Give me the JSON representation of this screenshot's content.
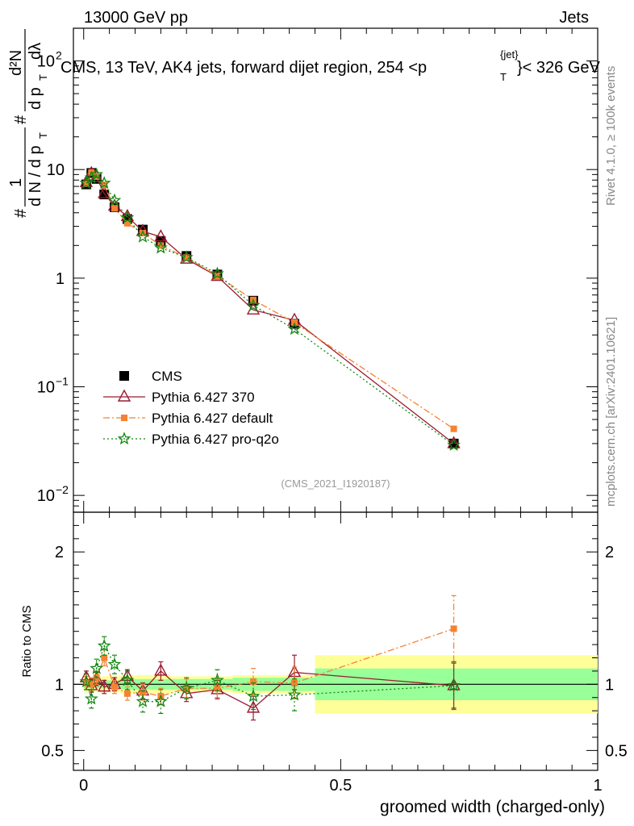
{
  "header": {
    "left": "13000 GeV pp",
    "right": "Jets",
    "title_part1": "CMS, 13 TeV, AK4 jets, forward dijet region, 254 <p",
    "title_sup": "{jet}",
    "title_sub": "T",
    "title_part2": "}< 326 GeV",
    "analysis_id": "(CMS_2021_I1920187)"
  },
  "side_labels": {
    "rivet": "Rivet 4.1.0, ≥ 100k events",
    "mcplots": "mcplots.cern.ch [arXiv:2401.10621]"
  },
  "ylabel_top": {
    "hash": "#",
    "one": "1",
    "dN": "d N / d p",
    "T": "T",
    "hash2": "#",
    "d2N": "d²N",
    "dpT": "d p",
    "dlambda": "dλ"
  },
  "chart_data": [
    {
      "type": "line",
      "panel": "main",
      "yscale": "log",
      "xlim": [
        -0.02,
        1.0
      ],
      "ylim": [
        0.007,
        200
      ],
      "x_ticks": [
        0,
        0.5,
        1
      ],
      "y_tick_labels": [
        {
          "v": 100,
          "base": "10",
          "exp": "2"
        },
        {
          "v": 10,
          "base": "10",
          "exp": ""
        },
        {
          "v": 1,
          "base": "1",
          "exp": ""
        },
        {
          "v": 0.1,
          "base": "10",
          "exp": "−1"
        },
        {
          "v": 0.01,
          "base": "10",
          "exp": "−2"
        }
      ],
      "x": [
        0.005,
        0.015,
        0.025,
        0.04,
        0.06,
        0.085,
        0.115,
        0.15,
        0.2,
        0.26,
        0.33,
        0.41,
        0.72
      ],
      "series": [
        {
          "name": "CMS",
          "color": "#000000",
          "marker": "square",
          "values": [
            7.3,
            9.3,
            8.2,
            5.9,
            4.5,
            3.5,
            2.8,
            2.2,
            1.6,
            1.08,
            0.62,
            0.38,
            0.03
          ]
        },
        {
          "name": "Pythia 6.427 370",
          "color": "#9b1b30",
          "marker": "triangle",
          "dash": "",
          "values": [
            7.6,
            9.2,
            8.5,
            6.0,
            4.6,
            3.7,
            2.7,
            2.4,
            1.5,
            1.04,
            0.51,
            0.41,
            0.03
          ]
        },
        {
          "name": "Pythia 6.427 default",
          "color": "#f58231",
          "marker": "filled-square",
          "dash": "8,3,2,3",
          "values": [
            7.4,
            9.4,
            8.6,
            7.2,
            4.4,
            3.2,
            2.6,
            2.0,
            1.55,
            1.05,
            0.63,
            0.39,
            0.041
          ]
        },
        {
          "name": "Pythia 6.427 pro-q2o",
          "color": "#118811",
          "marker": "star",
          "dash": "2,3",
          "values": [
            7.5,
            8.4,
            9.0,
            7.5,
            5.2,
            3.6,
            2.4,
            1.9,
            1.55,
            1.1,
            0.56,
            0.34,
            0.029
          ]
        }
      ]
    },
    {
      "type": "line",
      "panel": "ratio",
      "ylabel": "Ratio to CMS",
      "xlabel": "groomed width (charged-only)",
      "xlim": [
        -0.02,
        1.0
      ],
      "ylim": [
        0.35,
        2.3
      ],
      "y_ticks": [
        0.5,
        1,
        2
      ],
      "x_tick_labels": [
        "0",
        "0.5",
        "1"
      ],
      "x_bins": [
        [
          0.0,
          0.01
        ],
        [
          0.01,
          0.02
        ],
        [
          0.02,
          0.03
        ],
        [
          0.03,
          0.05
        ],
        [
          0.05,
          0.07
        ],
        [
          0.07,
          0.1
        ],
        [
          0.1,
          0.13
        ],
        [
          0.13,
          0.17
        ],
        [
          0.17,
          0.23
        ],
        [
          0.23,
          0.29
        ],
        [
          0.29,
          0.37
        ],
        [
          0.37,
          0.45
        ],
        [
          0.45,
          1.0
        ]
      ],
      "band_inner": [
        0.03,
        0.03,
        0.03,
        0.03,
        0.03,
        0.04,
        0.04,
        0.04,
        0.04,
        0.04,
        0.05,
        0.05,
        0.12
      ],
      "band_outer": [
        0.06,
        0.05,
        0.06,
        0.06,
        0.06,
        0.07,
        0.07,
        0.07,
        0.06,
        0.06,
        0.07,
        0.07,
        0.22
      ],
      "x": [
        0.005,
        0.015,
        0.025,
        0.04,
        0.06,
        0.085,
        0.115,
        0.15,
        0.2,
        0.26,
        0.33,
        0.41,
        0.72
      ],
      "series": [
        {
          "name": "Pythia 6.427 370",
          "color": "#9b1b30",
          "marker": "triangle",
          "dash": "",
          "values": [
            1.05,
            0.99,
            1.04,
            0.98,
            1.0,
            1.06,
            0.95,
            1.1,
            0.93,
            0.96,
            0.82,
            1.09,
            0.99
          ],
          "errors": [
            0.05,
            0.05,
            0.05,
            0.05,
            0.05,
            0.05,
            0.06,
            0.07,
            0.06,
            0.07,
            0.09,
            0.13,
            0.17
          ]
        },
        {
          "name": "Pythia 6.427 default",
          "color": "#f58231",
          "marker": "filled-square",
          "dash": "8,3,2,3",
          "values": [
            1.01,
            1.0,
            1.05,
            1.2,
            0.98,
            0.93,
            0.94,
            0.91,
            0.97,
            0.97,
            1.02,
            1.01,
            1.42
          ],
          "errors": [
            0.05,
            0.05,
            0.05,
            0.06,
            0.05,
            0.05,
            0.06,
            0.06,
            0.07,
            0.07,
            0.1,
            0.12,
            0.25
          ]
        },
        {
          "name": "Pythia 6.427 pro-q2o",
          "color": "#118811",
          "marker": "star",
          "dash": "2,3",
          "values": [
            1.02,
            0.89,
            1.12,
            1.29,
            1.15,
            1.03,
            0.87,
            0.87,
            0.97,
            1.03,
            0.91,
            0.92,
            0.99
          ],
          "errors": [
            0.06,
            0.07,
            0.07,
            0.07,
            0.07,
            0.07,
            0.08,
            0.09,
            0.08,
            0.08,
            0.1,
            0.12,
            0.18
          ]
        }
      ]
    }
  ]
}
